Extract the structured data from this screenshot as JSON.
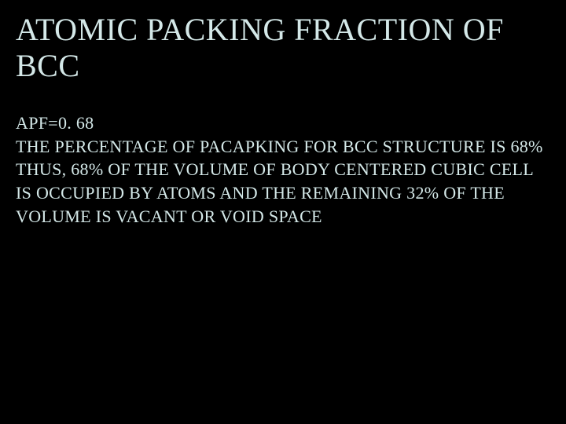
{
  "slide": {
    "title": "ATOMIC PACKING FRACTION OF BCC",
    "line1": "APF=0. 68",
    "line2": "THE PERCENTAGE OF PACAPKING FOR BCC STRUCTURE IS 68%",
    "line3": "THUS, 68% OF THE VOLUME OF BODY CENTERED CUBIC CELL IS OCCUPIED BY ATOMS AND THE REMAINING 32% OF THE VOLUME IS VACANT OR VOID SPACE",
    "background_color": "#000000",
    "text_color": "#d4e8e8",
    "title_fontsize": 40,
    "body_fontsize": 22,
    "font_family": "Georgia, serif"
  }
}
